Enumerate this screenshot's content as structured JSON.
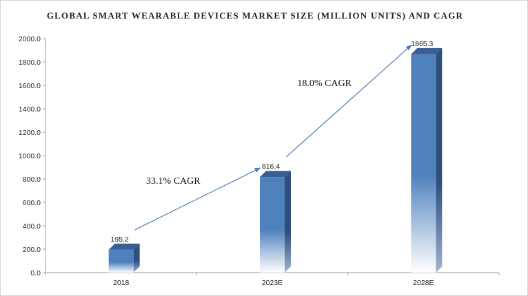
{
  "chart_data": {
    "type": "bar",
    "title": "GLOBAL SMART WEARABLE DEVICES MARKET  SIZE (MILLION UNITS) AND CAGR",
    "categories": [
      "2018",
      "2023E",
      "2028E"
    ],
    "values": [
      195.2,
      816.4,
      1865.3
    ],
    "value_labels": [
      "195.2",
      "816.4",
      "1865.3"
    ],
    "ylim": [
      0,
      2000
    ],
    "yticks": [
      "0.0",
      "200.0",
      "400.0",
      "600.0",
      "800.0",
      "1000.0",
      "1200.0",
      "1400.0",
      "1600.0",
      "1800.0",
      "2000.0"
    ],
    "grid": false,
    "annotations": [
      {
        "text": "33.1% CAGR",
        "from": "2018",
        "to": "2023E"
      },
      {
        "text": "18.0% CAGR",
        "from": "2023E",
        "to": "2028E"
      }
    ],
    "colors": {
      "bar_front": "#4f81bd",
      "bar_side": "#2f4f7f",
      "bar_top": "#3a5f95",
      "arrow": "#4a7ebb"
    }
  }
}
